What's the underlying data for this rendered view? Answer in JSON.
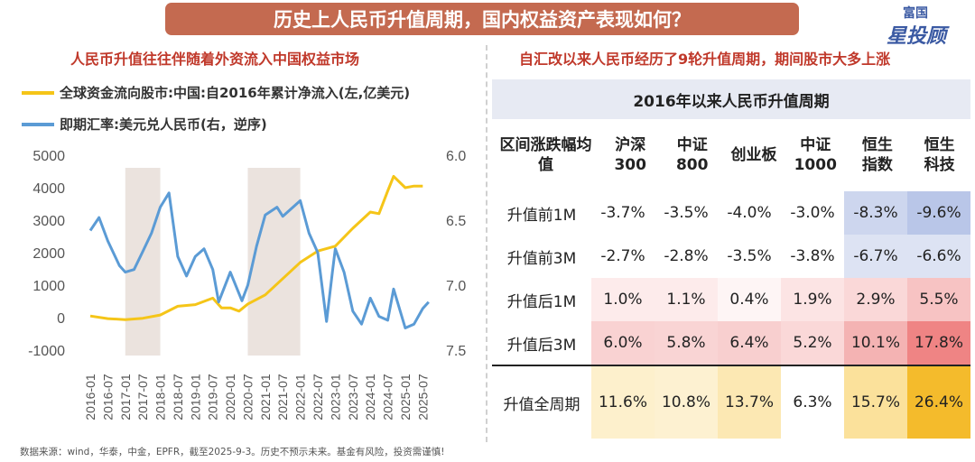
{
  "header": {
    "title": "历史上人民币升值周期，国内权益资产表现如何？"
  },
  "logo": {
    "line1": "富国",
    "line2": "星投顾"
  },
  "left": {
    "subtitle": "人民币升值往往伴随着外资流入中国权益市场",
    "legend": [
      {
        "label": "全球资金流向股市:中国:自2016年累计净流入(左,亿美元)",
        "color": "#f5c518"
      },
      {
        "label": "即期汇率:美元兑人民币(右，逆序)",
        "color": "#5b9bd5"
      }
    ]
  },
  "right": {
    "subtitle": "自汇改以来人民币经历了9轮升值周期，期间股市大多上涨",
    "table": {
      "title": "2016年以来人民币升值周期",
      "header_row_label": "区间涨跌幅均值",
      "columns": [
        "沪深300",
        "中证800",
        "创业板",
        "中证1000",
        "恒生指数",
        "恒生科技"
      ],
      "rows": [
        {
          "label": "升值前1M",
          "values": [
            "-3.7%",
            "-3.5%",
            "-4.0%",
            "-3.0%",
            "-8.3%",
            "-9.6%"
          ],
          "colors": [
            "#ffffff",
            "#ffffff",
            "#ffffff",
            "#ffffff",
            "#cdd6ee",
            "#b9c6e8"
          ]
        },
        {
          "label": "升值前3M",
          "values": [
            "-2.7%",
            "-2.8%",
            "-3.5%",
            "-3.8%",
            "-6.7%",
            "-6.6%"
          ],
          "colors": [
            "#ffffff",
            "#ffffff",
            "#ffffff",
            "#ffffff",
            "#dde3f3",
            "#dde3f3"
          ]
        },
        {
          "label": "升值后1M",
          "values": [
            "1.0%",
            "1.1%",
            "0.4%",
            "1.9%",
            "2.9%",
            "5.5%"
          ],
          "colors": [
            "#fdebeb",
            "#fdebeb",
            "#fef5f5",
            "#fce4e4",
            "#fad8d8",
            "#f7c3c3"
          ]
        },
        {
          "label": "升值后3M",
          "values": [
            "6.0%",
            "5.8%",
            "6.4%",
            "5.2%",
            "10.1%",
            "17.8%"
          ],
          "colors": [
            "#f9d2d2",
            "#f9d4d4",
            "#f8cfcf",
            "#fad8d8",
            "#f4b3b3",
            "#ef8484"
          ]
        },
        {
          "label": "升值全周期",
          "values": [
            "11.6%",
            "10.8%",
            "13.7%",
            "6.3%",
            "15.7%",
            "26.4%"
          ],
          "colors": [
            "#fdf0cc",
            "#fdf1d1",
            "#fce8b3",
            "#ffffff",
            "#fbe19b",
            "#f4bb2c"
          ]
        }
      ]
    }
  },
  "source": "数据来源：wind，华泰，中金，EPFR，截至2025-9-3。历史不预示未来。基金有风险，投资需谨慎!",
  "chart_data": {
    "type": "line",
    "x_ticks": [
      "2016-01",
      "2016-07",
      "2017-01",
      "2017-07",
      "2018-01",
      "2018-07",
      "2019-01",
      "2019-07",
      "2020-01",
      "2020-07",
      "2021-01",
      "2021-07",
      "2022-01",
      "2022-07",
      "2023-01",
      "2023-07",
      "2024-01",
      "2024-07",
      "2025-01",
      "2025-07"
    ],
    "y_left": {
      "ticks": [
        "5000",
        "4000",
        "3000",
        "2000",
        "1000",
        "0",
        "-1000"
      ],
      "range": [
        -1000,
        5000
      ]
    },
    "y_right": {
      "ticks": [
        "6.0",
        "6.5",
        "7.0",
        "7.5"
      ],
      "range": [
        6.0,
        7.5
      ],
      "inverted": true
    },
    "shaded_periods": [
      [
        "2017-01",
        "2018-01"
      ],
      [
        "2020-07",
        "2022-01"
      ]
    ],
    "series": [
      {
        "name": "全球资金流向股市:中国:自2016年累计净流入(左,亿美元)",
        "axis": "left",
        "color": "#f5c518",
        "points": [
          [
            "2016-01",
            50
          ],
          [
            "2016-07",
            -30
          ],
          [
            "2017-01",
            -60
          ],
          [
            "2017-07",
            -20
          ],
          [
            "2018-01",
            80
          ],
          [
            "2018-07",
            350
          ],
          [
            "2019-01",
            400
          ],
          [
            "2019-07",
            600
          ],
          [
            "2019-10",
            300
          ],
          [
            "2020-01",
            300
          ],
          [
            "2020-04",
            200
          ],
          [
            "2020-07",
            420
          ],
          [
            "2021-01",
            700
          ],
          [
            "2021-07",
            1200
          ],
          [
            "2022-01",
            1700
          ],
          [
            "2022-07",
            2050
          ],
          [
            "2023-01",
            2200
          ],
          [
            "2023-07",
            2750
          ],
          [
            "2024-01",
            3250
          ],
          [
            "2024-04",
            3200
          ],
          [
            "2024-07",
            3900
          ],
          [
            "2024-09",
            4350
          ],
          [
            "2025-01",
            4000
          ],
          [
            "2025-04",
            4050
          ],
          [
            "2025-07",
            4050
          ]
        ]
      },
      {
        "name": "即期汇率:美元兑人民币(右，逆序)",
        "axis": "right",
        "color": "#5b9bd5",
        "points": [
          [
            "2016-01",
            6.58
          ],
          [
            "2016-04",
            6.48
          ],
          [
            "2016-07",
            6.66
          ],
          [
            "2016-11",
            6.85
          ],
          [
            "2017-01",
            6.9
          ],
          [
            "2017-04",
            6.88
          ],
          [
            "2017-07",
            6.74
          ],
          [
            "2017-10",
            6.6
          ],
          [
            "2018-01",
            6.4
          ],
          [
            "2018-04",
            6.29
          ],
          [
            "2018-07",
            6.78
          ],
          [
            "2018-10",
            6.93
          ],
          [
            "2019-01",
            6.78
          ],
          [
            "2019-04",
            6.72
          ],
          [
            "2019-07",
            6.88
          ],
          [
            "2019-09",
            7.13
          ],
          [
            "2020-01",
            6.9
          ],
          [
            "2020-05",
            7.12
          ],
          [
            "2020-07",
            7.0
          ],
          [
            "2020-10",
            6.7
          ],
          [
            "2021-01",
            6.46
          ],
          [
            "2021-05",
            6.4
          ],
          [
            "2021-07",
            6.47
          ],
          [
            "2022-01",
            6.35
          ],
          [
            "2022-04",
            6.6
          ],
          [
            "2022-07",
            6.75
          ],
          [
            "2022-10",
            7.28
          ],
          [
            "2022-12",
            6.9
          ],
          [
            "2023-01",
            6.72
          ],
          [
            "2023-04",
            6.9
          ],
          [
            "2023-07",
            7.2
          ],
          [
            "2023-10",
            7.3
          ],
          [
            "2024-01",
            7.1
          ],
          [
            "2024-04",
            7.24
          ],
          [
            "2024-07",
            7.27
          ],
          [
            "2024-09",
            7.03
          ],
          [
            "2025-01",
            7.33
          ],
          [
            "2025-04",
            7.3
          ],
          [
            "2025-07",
            7.18
          ],
          [
            "2025-09",
            7.13
          ]
        ]
      }
    ]
  }
}
